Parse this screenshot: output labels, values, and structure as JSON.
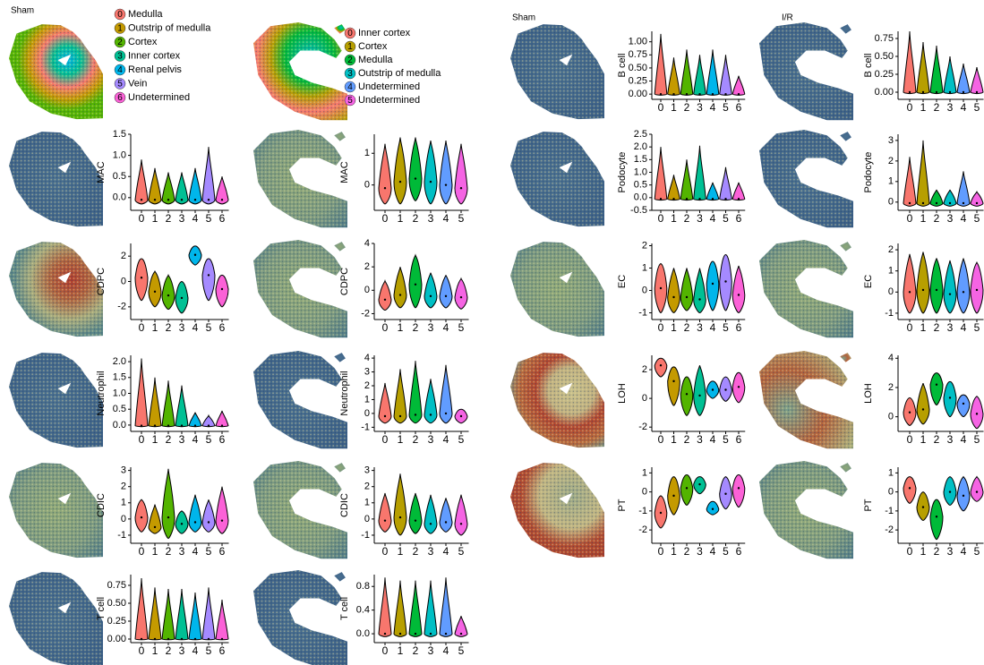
{
  "chart_data": [
    {
      "type": "spatial",
      "title": "Sham",
      "categories": [
        "0",
        "1",
        "2",
        "3",
        "4",
        "5",
        "6"
      ],
      "labels": [
        "Medulla",
        "Outstrip of medulla",
        "Cortex",
        "Inner cortex",
        "Renal pelvis",
        "Vein",
        "Undetermined"
      ],
      "colors": [
        "#F8766D",
        "#C49A00",
        "#53B400",
        "#00C094",
        "#00B6EB",
        "#A58AFF",
        "#FB61D7"
      ]
    },
    {
      "type": "spatial",
      "categories": [
        "0",
        "1",
        "2",
        "3",
        "4",
        "5"
      ],
      "labels": [
        "Inner cortex",
        "Cortex",
        "Medulla",
        "Outstrip of medulla",
        "Undetermined",
        "Undetermined"
      ],
      "colors": [
        "#F8766D",
        "#B79F00",
        "#00BA38",
        "#00BFC4",
        "#619CFF",
        "#F564E3"
      ]
    },
    {
      "type": "spatial",
      "title": "Sham"
    },
    {
      "type": "spatial",
      "title": "I/R"
    },
    {
      "type": "violin",
      "y_label": "MAC",
      "categories": [
        "0",
        "1",
        "2",
        "3",
        "4",
        "5",
        "6"
      ],
      "colors": [
        "#F8766D",
        "#C49A00",
        "#53B400",
        "#00C094",
        "#00B6EB",
        "#A58AFF",
        "#FB61D7"
      ],
      "values": [
        -0.05,
        -0.05,
        -0.05,
        -0.05,
        -0.05,
        -0.05,
        -0.05
      ],
      "max": [
        0.9,
        0.7,
        0.6,
        0.6,
        0.7,
        1.2,
        0.5
      ],
      "min": [
        -0.15,
        -0.15,
        -0.15,
        -0.15,
        -0.15,
        -0.15,
        -0.15
      ],
      "ylim": [
        -0.3,
        1.5
      ],
      "yticks": [
        {
          "value": 0,
          "label": "0.0"
        },
        {
          "value": 0.5,
          "label": "0.5"
        },
        {
          "value": 1,
          "label": "1.0"
        },
        {
          "value": 1.5,
          "label": "1.5"
        }
      ]
    },
    {
      "type": "violin",
      "y_label": "CDPC",
      "categories": [
        "0",
        "1",
        "2",
        "3",
        "4",
        "5",
        "6"
      ],
      "colors": [
        "#F8766D",
        "#C49A00",
        "#53B400",
        "#00C094",
        "#00B6EB",
        "#A58AFF",
        "#FB61D7"
      ],
      "values": [
        0.3,
        -0.8,
        -1.1,
        -1.3,
        2.1,
        0.5,
        -0.6
      ],
      "max": [
        1.8,
        0.8,
        0.5,
        0,
        2.8,
        1.8,
        0.5
      ],
      "min": [
        -1.5,
        -2,
        -2.2,
        -2.5,
        1.3,
        -1.5,
        -2
      ],
      "ylim": [
        -3,
        3
      ],
      "yticks": [
        -2,
        0,
        2
      ]
    },
    {
      "type": "violin",
      "y_label": "Neutrophil",
      "categories": [
        "0",
        "1",
        "2",
        "3",
        "4",
        "5",
        "6"
      ],
      "colors": [
        "#F8766D",
        "#C49A00",
        "#53B400",
        "#00C094",
        "#00B6EB",
        "#A58AFF",
        "#FB61D7"
      ],
      "values": [
        -0.02,
        -0.02,
        -0.02,
        -0.02,
        -0.02,
        -0.02,
        -0.02
      ],
      "max": [
        2.1,
        1.5,
        1.4,
        1.25,
        0.4,
        0.3,
        0.45
      ],
      "min": [
        -0.05,
        -0.05,
        -0.05,
        -0.05,
        -0.05,
        -0.05,
        -0.05
      ],
      "ylim": [
        -0.2,
        2.2
      ],
      "yticks": [
        {
          "value": 0,
          "label": "0.0"
        },
        {
          "value": 0.5,
          "label": "0.5"
        },
        {
          "value": 1,
          "label": "1.0"
        },
        {
          "value": 1.5,
          "label": "1.5"
        },
        {
          "value": 2,
          "label": "2.0"
        }
      ]
    },
    {
      "type": "violin",
      "y_label": "CDIC",
      "categories": [
        "0",
        "1",
        "2",
        "3",
        "4",
        "5",
        "6"
      ],
      "colors": [
        "#F8766D",
        "#C49A00",
        "#53B400",
        "#00C094",
        "#00B6EB",
        "#A58AFF",
        "#FB61D7"
      ],
      "values": [
        0.1,
        -0.5,
        0.1,
        -0.3,
        -0.2,
        -0.2,
        -0.1
      ],
      "max": [
        1.2,
        0.9,
        3.1,
        0.5,
        1.5,
        1.2,
        2
      ],
      "min": [
        -0.8,
        -0.9,
        -1.2,
        -0.9,
        -0.8,
        -0.8,
        -0.9
      ],
      "ylim": [
        -1.5,
        3.2
      ],
      "yticks": [
        -1,
        0,
        1,
        2,
        3
      ]
    },
    {
      "type": "violin",
      "y_label": "T cell",
      "categories": [
        "0",
        "1",
        "2",
        "3",
        "4",
        "5",
        "6"
      ],
      "colors": [
        "#F8766D",
        "#C49A00",
        "#53B400",
        "#00C094",
        "#00B6EB",
        "#A58AFF",
        "#FB61D7"
      ],
      "values": [
        0,
        0,
        0,
        0,
        0,
        0,
        0
      ],
      "max": [
        0.85,
        0.72,
        0.7,
        0.7,
        0.65,
        0.72,
        0.55
      ],
      "min": [
        -0.01,
        -0.01,
        -0.01,
        -0.01,
        -0.01,
        -0.01,
        -0.01
      ],
      "ylim": [
        -0.05,
        0.9
      ],
      "yticks": [
        {
          "value": 0,
          "label": "0.00"
        },
        {
          "value": 0.25,
          "label": "0.25"
        },
        {
          "value": 0.5,
          "label": "0.50"
        },
        {
          "value": 0.75,
          "label": "0.75"
        }
      ]
    },
    {
      "type": "violin",
      "y_label": "MAC",
      "categories": [
        "0",
        "1",
        "2",
        "3",
        "4",
        "5"
      ],
      "colors": [
        "#F8766D",
        "#B79F00",
        "#00BA38",
        "#00BFC4",
        "#619CFF",
        "#F564E3"
      ],
      "values": [
        -0.1,
        0.1,
        0.2,
        0.1,
        0,
        -0.1
      ],
      "max": [
        1.3,
        1.5,
        1.5,
        1.4,
        1.4,
        1.3
      ],
      "min": [
        -0.6,
        -0.6,
        -0.5,
        -0.6,
        -0.6,
        -0.6
      ],
      "ylim": [
        -0.8,
        1.6
      ],
      "yticks": [
        0,
        1
      ]
    },
    {
      "type": "violin",
      "y_label": "CDPC",
      "categories": [
        "0",
        "1",
        "2",
        "3",
        "4",
        "5"
      ],
      "colors": [
        "#F8766D",
        "#B79F00",
        "#00BA38",
        "#00BFC4",
        "#619CFF",
        "#F564E3"
      ],
      "values": [
        -0.8,
        -0.4,
        0.5,
        -0.5,
        -0.5,
        -0.6
      ],
      "max": [
        0.8,
        2,
        3,
        1.5,
        1.3,
        1
      ],
      "min": [
        -1.7,
        -1.5,
        -1.5,
        -1.5,
        -1.5,
        -1.6
      ],
      "ylim": [
        -2.5,
        4
      ],
      "yticks": [
        -2,
        0,
        2,
        4
      ]
    },
    {
      "type": "violin",
      "y_label": "Neutrophil",
      "categories": [
        "0",
        "1",
        "2",
        "3",
        "4",
        "5"
      ],
      "colors": [
        "#F8766D",
        "#B79F00",
        "#00BA38",
        "#00BFC4",
        "#619CFF",
        "#F564E3"
      ],
      "values": [
        -0.2,
        -0.2,
        -0.1,
        -0.1,
        0,
        -0.2
      ],
      "max": [
        2.2,
        3.2,
        3.8,
        2.5,
        3.5,
        0.3
      ],
      "min": [
        -0.7,
        -0.7,
        -0.7,
        -0.7,
        -0.7,
        -0.7
      ],
      "ylim": [
        -1.3,
        4.2
      ],
      "yticks": [
        -1,
        0,
        1,
        2,
        3,
        4
      ]
    },
    {
      "type": "violin",
      "y_label": "CDIC",
      "categories": [
        "0",
        "1",
        "2",
        "3",
        "4",
        "5"
      ],
      "colors": [
        "#F8766D",
        "#B79F00",
        "#00BA38",
        "#00BFC4",
        "#619CFF",
        "#F564E3"
      ],
      "values": [
        -0.1,
        0.1,
        -0.1,
        -0.3,
        -0.2,
        -0.3
      ],
      "max": [
        1.6,
        2.8,
        1.6,
        1.5,
        1.3,
        1.5
      ],
      "min": [
        -0.8,
        -1,
        -0.9,
        -0.9,
        -0.8,
        -1
      ],
      "ylim": [
        -1.5,
        3.2
      ],
      "yticks": [
        -1,
        0,
        1,
        2,
        3
      ]
    },
    {
      "type": "violin",
      "y_label": "T cell",
      "categories": [
        "0",
        "1",
        "2",
        "3",
        "4",
        "5"
      ],
      "colors": [
        "#F8766D",
        "#B79F00",
        "#00BA38",
        "#00BFC4",
        "#619CFF",
        "#F564E3"
      ],
      "values": [
        0,
        0,
        0,
        0,
        0,
        0
      ],
      "max": [
        0.95,
        0.9,
        0.9,
        0.9,
        0.95,
        0.3
      ],
      "min": [
        -0.05,
        -0.05,
        -0.05,
        -0.05,
        -0.05,
        -0.05
      ],
      "ylim": [
        -0.15,
        1
      ],
      "yticks": [
        {
          "value": 0,
          "label": "0.0"
        },
        {
          "value": 0.4,
          "label": "0.4"
        },
        {
          "value": 0.8,
          "label": "0.8"
        }
      ]
    },
    {
      "type": "violin",
      "y_label": "B cell",
      "categories": [
        "0",
        "1",
        "2",
        "3",
        "4",
        "5",
        "6"
      ],
      "colors": [
        "#F8766D",
        "#C49A00",
        "#53B400",
        "#00C094",
        "#00B6EB",
        "#A58AFF",
        "#FB61D7"
      ],
      "values": [
        0,
        0,
        0,
        0,
        0,
        0,
        0
      ],
      "max": [
        1.15,
        0.7,
        0.85,
        0.75,
        0.85,
        0.75,
        0.35
      ],
      "min": [
        -0.02,
        -0.02,
        -0.02,
        -0.02,
        -0.02,
        -0.02,
        -0.02
      ],
      "ylim": [
        -0.1,
        1.2
      ],
      "yticks": [
        {
          "value": 0,
          "label": "0.00"
        },
        {
          "value": 0.25,
          "label": "0.25"
        },
        {
          "value": 0.5,
          "label": "0.50"
        },
        {
          "value": 0.75,
          "label": "0.75"
        },
        {
          "value": 1,
          "label": "1.00"
        }
      ]
    },
    {
      "type": "violin",
      "y_label": "Podocyte",
      "categories": [
        "0",
        "1",
        "2",
        "3",
        "4",
        "5",
        "6"
      ],
      "colors": [
        "#F8766D",
        "#C49A00",
        "#53B400",
        "#00C094",
        "#00B6EB",
        "#A58AFF",
        "#FB61D7"
      ],
      "values": [
        -0.05,
        -0.05,
        -0.05,
        -0.05,
        -0.05,
        -0.05,
        -0.05
      ],
      "max": [
        2,
        0.9,
        1.5,
        2.05,
        0.6,
        1.2,
        0.6
      ],
      "min": [
        -0.1,
        -0.1,
        -0.1,
        -0.1,
        -0.1,
        -0.1,
        -0.1
      ],
      "ylim": [
        -0.5,
        2.5
      ],
      "yticks": [
        -0.5,
        {
          "value": 0,
          "label": "0.0"
        },
        0.5,
        {
          "value": 1,
          "label": "1.0"
        },
        1.5,
        {
          "value": 2,
          "label": "2.0"
        },
        2.5
      ]
    },
    {
      "type": "violin",
      "y_label": "EC",
      "categories": [
        "0",
        "1",
        "2",
        "3",
        "4",
        "5",
        "6"
      ],
      "colors": [
        "#F8766D",
        "#C49A00",
        "#53B400",
        "#00C094",
        "#00B6EB",
        "#A58AFF",
        "#FB61D7"
      ],
      "values": [
        0.1,
        -0.3,
        -0.3,
        -0.4,
        0.3,
        0.4,
        -0.2
      ],
      "max": [
        1.2,
        1,
        1,
        1,
        1.3,
        1.6,
        1.1
      ],
      "min": [
        -1,
        -1,
        -0.9,
        -1,
        -0.9,
        -0.9,
        -1
      ],
      "ylim": [
        -1.3,
        2.1
      ],
      "yticks": [
        -1,
        0,
        1,
        2
      ]
    },
    {
      "type": "violin",
      "y_label": "LOH",
      "categories": [
        "0",
        "1",
        "2",
        "3",
        "4",
        "5",
        "6"
      ],
      "colors": [
        "#F8766D",
        "#C49A00",
        "#53B400",
        "#00C094",
        "#00B6EB",
        "#A58AFF",
        "#FB61D7"
      ],
      "values": [
        2.3,
        1.2,
        0.3,
        0.2,
        0.6,
        0.6,
        0.8
      ],
      "max": [
        2.8,
        2.2,
        1.5,
        2.3,
        1.2,
        1.5,
        1.8
      ],
      "min": [
        1.5,
        -0.5,
        -1.2,
        -1.2,
        0,
        -0.2,
        -0.3
      ],
      "ylim": [
        -2.3,
        3
      ],
      "yticks": [
        -2,
        0,
        2
      ]
    },
    {
      "type": "violin",
      "y_label": "PT",
      "categories": [
        "0",
        "1",
        "2",
        "3",
        "4",
        "5",
        "6"
      ],
      "colors": [
        "#F8766D",
        "#C49A00",
        "#53B400",
        "#00C094",
        "#00B6EB",
        "#A58AFF",
        "#FB61D7"
      ],
      "values": [
        -1.1,
        -0.2,
        0.2,
        0.4,
        -0.9,
        -0.1,
        0.2
      ],
      "max": [
        -0.2,
        0.8,
        0.9,
        0.8,
        -0.5,
        0.8,
        0.9
      ],
      "min": [
        -1.9,
        -1.2,
        -0.7,
        -0.1,
        -1.2,
        -0.9,
        -0.8
      ],
      "ylim": [
        -2.7,
        1.3
      ],
      "yticks": [
        -2,
        -1,
        0,
        1
      ]
    },
    {
      "type": "violin",
      "y_label": "B cell",
      "categories": [
        "0",
        "1",
        "2",
        "3",
        "4",
        "5"
      ],
      "colors": [
        "#F8766D",
        "#B79F00",
        "#00BA38",
        "#00BFC4",
        "#619CFF",
        "#F564E3"
      ],
      "values": [
        0,
        0,
        0,
        0,
        0,
        0
      ],
      "max": [
        0.85,
        0.7,
        0.65,
        0.5,
        0.4,
        0.35
      ],
      "min": [
        -0.02,
        -0.02,
        -0.02,
        -0.02,
        -0.02,
        -0.02
      ],
      "ylim": [
        -0.1,
        0.85
      ],
      "yticks": [
        {
          "value": 0,
          "label": "0.00"
        },
        {
          "value": 0.25,
          "label": "0.25"
        },
        {
          "value": 0.5,
          "label": "0.50"
        },
        {
          "value": 0.75,
          "label": "0.75"
        }
      ]
    },
    {
      "type": "violin",
      "y_label": "Podocyte",
      "categories": [
        "0",
        "1",
        "2",
        "3",
        "4",
        "5"
      ],
      "colors": [
        "#F8766D",
        "#B79F00",
        "#00BA38",
        "#00BFC4",
        "#619CFF",
        "#F564E3"
      ],
      "values": [
        -0.05,
        -0.05,
        -0.05,
        -0.05,
        -0.05,
        -0.05
      ],
      "max": [
        2.2,
        3,
        0.6,
        0.6,
        1.5,
        0.5
      ],
      "min": [
        -0.2,
        -0.2,
        -0.2,
        -0.2,
        -0.2,
        -0.2
      ],
      "ylim": [
        -0.4,
        3.3
      ],
      "yticks": [
        0,
        1,
        2,
        3
      ]
    },
    {
      "type": "violin",
      "y_label": "EC",
      "categories": [
        "0",
        "1",
        "2",
        "3",
        "4",
        "5"
      ],
      "colors": [
        "#F8766D",
        "#B79F00",
        "#00BA38",
        "#00BFC4",
        "#619CFF",
        "#F564E3"
      ],
      "values": [
        0,
        0.1,
        0.1,
        -0.1,
        0,
        0.1
      ],
      "max": [
        1.8,
        1.9,
        1.6,
        1.5,
        1.6,
        1.4
      ],
      "min": [
        -1,
        -1,
        -1,
        -1,
        -1,
        -1
      ],
      "ylim": [
        -1.3,
        2.3
      ],
      "yticks": [
        -1,
        0,
        1,
        2
      ]
    },
    {
      "type": "violin",
      "y_label": "LOH",
      "categories": [
        "0",
        "1",
        "2",
        "3",
        "4",
        "5"
      ],
      "colors": [
        "#F8766D",
        "#B79F00",
        "#00BA38",
        "#00BFC4",
        "#619CFF",
        "#F564E3"
      ],
      "values": [
        0.3,
        0.5,
        2.2,
        1.3,
        0.9,
        0.2
      ],
      "max": [
        1.3,
        2.3,
        3,
        2.4,
        1.5,
        1.4
      ],
      "min": [
        -0.6,
        -0.5,
        0.8,
        0,
        0,
        -0.8
      ],
      "ylim": [
        -1,
        4.2
      ],
      "yticks": [
        0,
        2,
        4
      ]
    },
    {
      "type": "violin",
      "y_label": "PT",
      "categories": [
        "0",
        "1",
        "2",
        "3",
        "4",
        "5"
      ],
      "colors": [
        "#F8766D",
        "#B79F00",
        "#00BA38",
        "#00BFC4",
        "#619CFF",
        "#F564E3"
      ],
      "values": [
        0.2,
        -0.8,
        -1.3,
        0,
        -0.2,
        0
      ],
      "max": [
        0.8,
        0,
        -0.4,
        0.8,
        0.8,
        0.8
      ],
      "min": [
        -0.6,
        -1.5,
        -2.5,
        -0.7,
        -1,
        -0.5
      ],
      "ylim": [
        -2.7,
        1.3
      ],
      "yticks": [
        -2,
        -1,
        0,
        1
      ]
    }
  ]
}
